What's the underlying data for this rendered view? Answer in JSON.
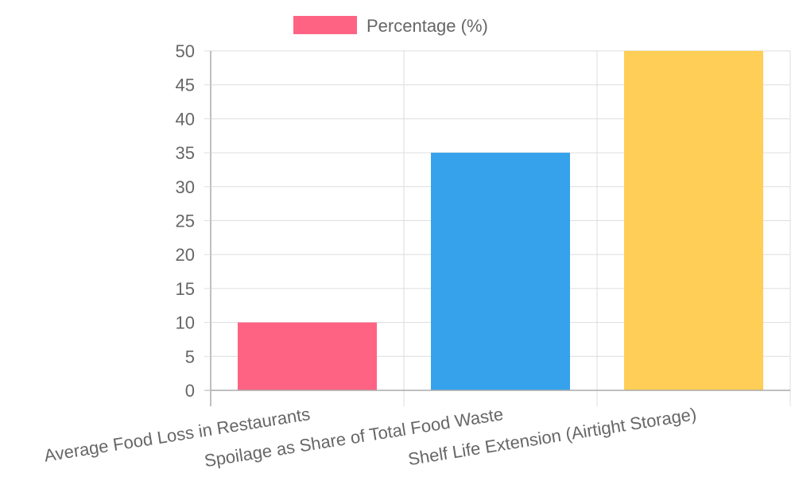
{
  "chart_data": {
    "type": "bar",
    "categories": [
      "Average Food Loss in Restaurants",
      "Spoilage as Share of Total Food Waste",
      "Shelf Life Extension (Airtight Storage)"
    ],
    "series": [
      {
        "name": "Percentage (%)",
        "values": [
          10,
          35,
          50
        ],
        "colors": [
          "#ff6384",
          "#36a2eb",
          "#ffce56"
        ]
      }
    ],
    "ylim": [
      0,
      50
    ],
    "yticks": [
      0,
      5,
      10,
      15,
      20,
      25,
      30,
      35,
      40,
      45,
      50
    ],
    "grid": true,
    "legend": "top-center",
    "legend_color": "#ff6384"
  }
}
